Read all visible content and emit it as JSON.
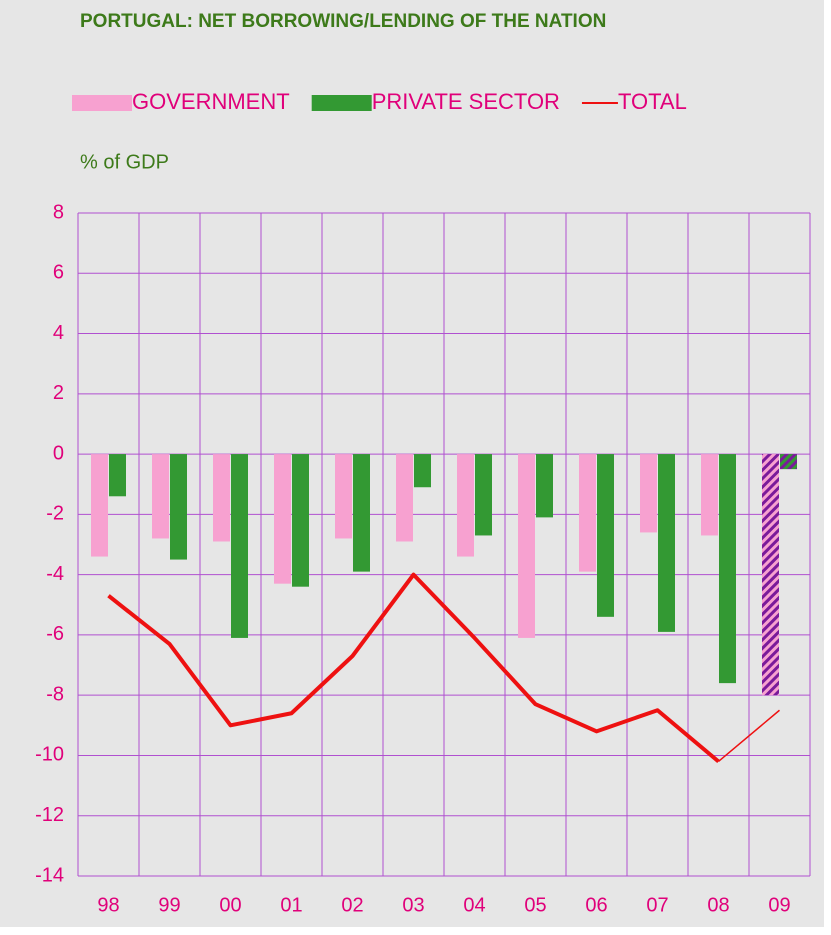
{
  "chart_data": {
    "type": "bar",
    "title": "PORTUGAL: NET BORROWING/LENDING OF THE NATION",
    "y_label": "% of GDP",
    "categories": [
      "98",
      "99",
      "00",
      "01",
      "02",
      "03",
      "04",
      "05",
      "06",
      "07",
      "08",
      "09"
    ],
    "forecast": [
      false,
      false,
      false,
      false,
      false,
      false,
      false,
      false,
      false,
      false,
      false,
      true
    ],
    "series": [
      {
        "name": "GOVERNMENT",
        "type": "bar",
        "color": "#f7a1d0",
        "values": [
          -3.4,
          -2.8,
          -2.9,
          -4.3,
          -2.8,
          -2.9,
          -3.4,
          -6.1,
          -3.9,
          -2.6,
          -2.7,
          -8.0
        ]
      },
      {
        "name": "PRIVATE SECTOR",
        "type": "bar",
        "color": "#339933",
        "values": [
          -1.4,
          -3.5,
          -6.1,
          -4.4,
          -3.9,
          -1.1,
          -2.7,
          -2.1,
          -5.4,
          -5.9,
          -7.6,
          -0.5
        ]
      },
      {
        "name": "TOTAL",
        "type": "line",
        "color": "#ee1111",
        "values": [
          -4.7,
          -6.3,
          -9.0,
          -8.6,
          -6.7,
          -4.0,
          -6.1,
          -8.3,
          -9.2,
          -8.5,
          -10.2,
          -8.5
        ]
      }
    ],
    "ylim": [
      -14,
      8
    ],
    "yticks": [
      -14,
      -12,
      -10,
      -8,
      -6,
      -4,
      -2,
      0,
      2,
      4,
      6,
      8
    ],
    "grid": true
  }
}
